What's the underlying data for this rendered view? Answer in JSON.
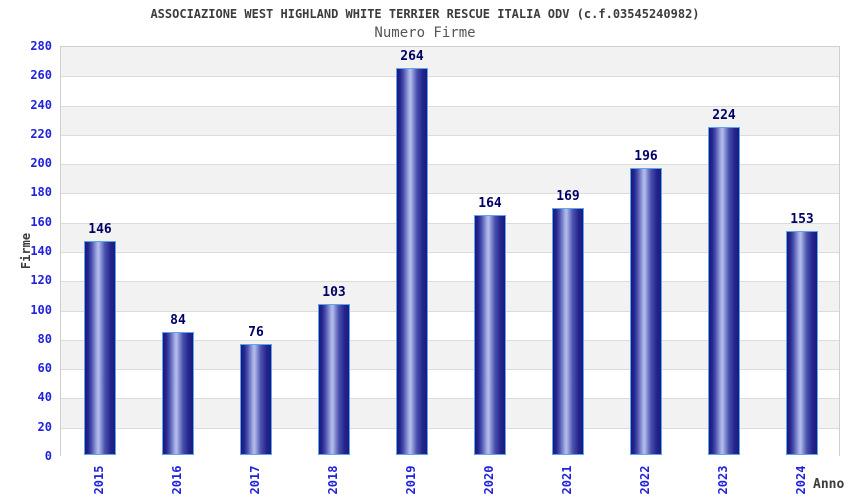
{
  "header": {
    "title": "ASSOCIAZIONE WEST HIGHLAND WHITE TERRIER RESCUE ITALIA ODV (c.f.03545240982)",
    "subtitle": "Numero Firme"
  },
  "chart_data": {
    "type": "bar",
    "title": "ASSOCIAZIONE WEST HIGHLAND WHITE TERRIER RESCUE ITALIA ODV (c.f.03545240982)",
    "subtitle": "Numero Firme",
    "categories": [
      "2015",
      "2016",
      "2017",
      "2018",
      "2019",
      "2020",
      "2021",
      "2022",
      "2023",
      "2024"
    ],
    "values": [
      146,
      84,
      76,
      103,
      264,
      164,
      169,
      196,
      224,
      153
    ],
    "xlabel": "Anno",
    "ylabel": "Firme",
    "ylim": [
      0,
      280
    ],
    "ytick_step": 20,
    "grid": true,
    "legend": "none",
    "colors": {
      "title_text": "#3c3c3c",
      "subtitle_text": "#555555",
      "tick_label": "#2222dd",
      "value_label": "#000066",
      "axis_label": "#3c3c3c",
      "plot_border": "#cfcfcf",
      "band_gray": "#f2f2f2",
      "band_white": "#ffffff",
      "gridline": "#dcdcdc",
      "bar_border": "#5aa7f0",
      "bar_edge": "#1b1b7e",
      "bar_mid": "#4a52ae",
      "bar_highlight": "#b7bfed"
    }
  }
}
